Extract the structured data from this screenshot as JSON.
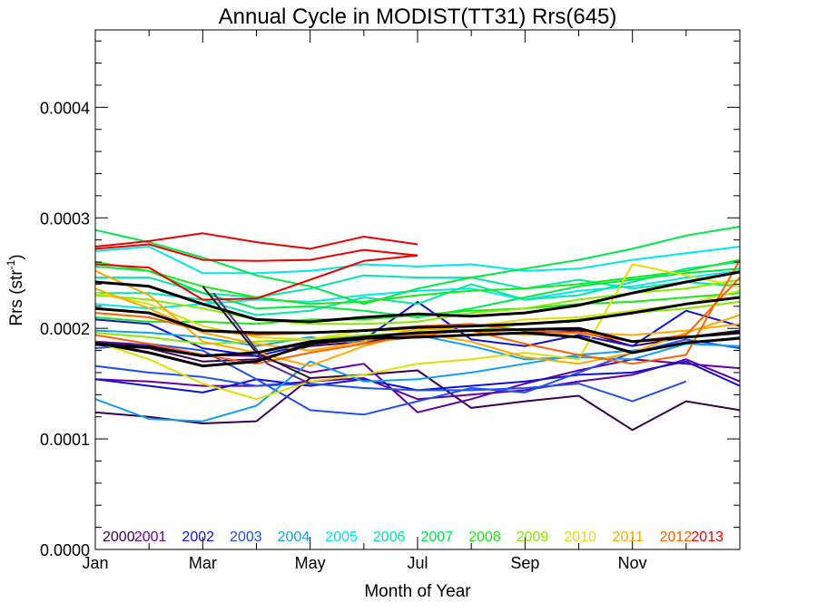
{
  "chart_data": {
    "type": "line",
    "title": "Annual Cycle in MODIST(TT31) Rrs(645)",
    "xlabel": "Month of Year",
    "ylabel": "Rrs (str",
    "ylabel_sup": "-1",
    "ylabel_close": ")",
    "xlim": [
      1,
      13
    ],
    "ylim": [
      0,
      0.00047
    ],
    "x_ticks": [
      {
        "value": 1,
        "label": "Jan"
      },
      {
        "value": 3,
        "label": "Mar"
      },
      {
        "value": 5,
        "label": "May"
      },
      {
        "value": 7,
        "label": "Jul"
      },
      {
        "value": 9,
        "label": "Sep"
      },
      {
        "value": 11,
        "label": "Nov"
      }
    ],
    "y_ticks": [
      {
        "value": 0,
        "label": "0.0000"
      },
      {
        "value": 0.0001,
        "label": "0.0001"
      },
      {
        "value": 0.0002,
        "label": "0.0002"
      },
      {
        "value": 0.0003,
        "label": "0.0003"
      },
      {
        "value": 0.0004,
        "label": "0.0004"
      }
    ],
    "grid": false,
    "legend_position": "bottom",
    "series": [
      {
        "name": "2000",
        "color": "#3a0050",
        "lines": [
          [
            0.000124,
            0.00012,
            0.000114,
            0.000116,
            0.000155,
            0.000158,
            0.000162,
            0.000128,
            0.000134,
            0.000139,
            0.000108,
            0.000134,
            0.000126
          ],
          [
            0.000185,
            0.000182,
            0.00017,
            0.000172,
            0.000184,
            0.000188,
            0.000192,
            0.000194,
            0.000196,
            0.000198,
            0.000184,
            0.000192,
            0.000198
          ]
        ]
      },
      {
        "name": "2001",
        "color": "#6400a6",
        "lines": [
          [
            0.000188,
            0.000185,
            0.000176,
            0.000175,
            0.00016,
            0.000168,
            0.000124,
            0.000136,
            0.00015,
            0.000162,
            0.000172,
            0.000168,
            0.000164
          ],
          [
            0.000154,
            0.000152,
            0.000148,
            0.000148,
            0.000152,
            0.000155,
            0.000136,
            0.00014,
            0.000144,
            0.000152,
            0.000158,
            0.000172,
            0.000152
          ]
        ]
      },
      {
        "name": "2002",
        "color": "#1010d8",
        "lines": [
          [
            0.000208,
            0.000204,
            0.000182,
            0.000175,
            0.000186,
            0.00019,
            0.000224,
            0.00019,
            0.000184,
            0.000194,
            0.000184,
            0.000216,
            0.000202
          ],
          [
            0.000154,
            0.000148,
            0.000142,
            0.000154,
            0.000148,
            0.000154,
            0.000144,
            0.000148,
            0.000152,
            0.000158,
            0.00016,
            0.00017,
            0.000148
          ]
        ]
      },
      {
        "name": "2003",
        "color": "#2050f0",
        "lines": [
          [
            0.000166,
            0.00016,
            0.000156,
            0.000148,
            0.00015,
            0.000146,
            0.000144,
            0.000144,
            0.000146,
            0.00015,
            0.000134,
            0.000152
          ],
          [
            0.000182,
            0.000186,
            0.00018,
            0.000154,
            0.000126,
            0.000122,
            0.000134,
            0.000146,
            0.000142,
            0.00016,
            0.000178,
            0.00019,
            0.000182
          ]
        ]
      },
      {
        "name": "2004",
        "color": "#10a0f0",
        "lines": [
          [
            0.000136,
            0.000118,
            0.000116,
            0.00013,
            0.00017,
            0.000152,
            0.000154,
            0.00016,
            0.000168,
            0.000176,
            0.00018,
            0.000186,
            0.000184
          ],
          [
            0.000198,
            0.000196,
            0.000192,
            0.000184,
            0.000192,
            0.000186,
            0.000194,
            0.000184,
            0.000172,
            0.000174,
            0.000172,
            0.000186,
            0.000192
          ]
        ]
      },
      {
        "name": "2005",
        "color": "#00e8e8",
        "lines": [
          [
            0.00027,
            0.000274,
            0.00025,
            0.00025,
            0.000252,
            0.000258,
            0.000256,
            0.000258,
            0.000252,
            0.000254,
            0.000262,
            0.000268,
            0.000274
          ],
          [
            0.000222,
            0.000218,
            0.000222,
            0.000226,
            0.000224,
            0.00023,
            0.000234,
            0.000236,
            0.000226,
            0.000234,
            0.000238,
            0.000246,
            0.000252
          ]
        ]
      },
      {
        "name": "2006",
        "color": "#00e8a8",
        "lines": [
          [
            0.000246,
            0.000246,
            0.000232,
            0.000228,
            0.000236,
            0.000248,
            0.000246,
            0.000246,
            0.000236,
            0.000244,
            0.000236,
            0.000242,
            0.000238
          ],
          [
            0.000232,
            0.000232,
            0.000226,
            0.000212,
            0.000216,
            0.000228,
            0.000222,
            0.00024,
            0.000226,
            0.00023,
            0.000242,
            0.000254,
            0.00026
          ]
        ]
      },
      {
        "name": "2007",
        "color": "#00e848",
        "lines": [
          [
            0.000289,
            0.000278,
            0.000264,
            0.000248,
            0.000238,
            0.000222,
            0.000236,
            0.000246,
            0.000254,
            0.000262,
            0.000272,
            0.000284,
            0.000292
          ],
          [
            0.000256,
            0.000252,
            0.000232,
            0.000218,
            0.00022,
            0.000216,
            0.00021,
            0.000218,
            0.000228,
            0.000238,
            0.000244,
            0.00025,
            0.000254
          ]
        ]
      },
      {
        "name": "2008",
        "color": "#18e818",
        "lines": [
          [
            0.00026,
            0.000252,
            0.000238,
            0.000228,
            0.000222,
            0.000224,
            0.00023,
            0.000234,
            0.000236,
            0.00024,
            0.000246,
            0.000252,
            0.000262
          ],
          [
            0.00021,
            0.000206,
            0.000206,
            0.000204,
            0.000208,
            0.000208,
            0.000212,
            0.000216,
            0.000218,
            0.000222,
            0.000224,
            0.000228,
            0.000232
          ]
        ]
      },
      {
        "name": "2009",
        "color": "#88e800",
        "lines": [
          [
            0.00023,
            0.000226,
            0.000218,
            0.000208,
            0.000204,
            0.000204,
            0.000206,
            0.000214,
            0.000218,
            0.000226,
            0.000232,
            0.000236,
            0.000244
          ],
          [
            0.000196,
            0.000192,
            0.000186,
            0.000188,
            0.00019,
            0.000194,
            0.000196,
            0.000198,
            0.000204,
            0.000208,
            0.000214,
            0.000218,
            0.000224
          ]
        ]
      },
      {
        "name": "2010",
        "color": "#e0e000",
        "lines": [
          [
            0.000188,
            0.000172,
            0.00015,
            0.000136,
            0.000152,
            0.000158,
            0.000168,
            0.000172,
            0.000178,
            0.000172,
            0.000258,
            0.000248,
            0.000238
          ],
          [
            0.000232,
            0.000222,
            0.000202,
            0.000192,
            0.00019,
            0.000198,
            0.000198,
            0.000202,
            0.000208,
            0.00021,
            0.000216,
            0.000222,
            0.000234
          ]
        ]
      },
      {
        "name": "2011",
        "color": "#ffa800",
        "lines": [
          [
            0.000252,
            0.00023,
            0.000188,
            0.000178,
            0.000166,
            0.000184,
            0.000196,
            0.000188,
            0.000174,
            0.000168,
            0.000178,
            0.000196,
            0.000212
          ],
          [
            0.000236,
            0.000218,
            0.000196,
            0.000186,
            0.00018,
            0.000188,
            0.0002,
            0.000198,
            0.000194,
            0.000196,
            0.000194,
            0.000198,
            0.000204
          ]
        ]
      },
      {
        "name": "2012",
        "color": "#ff6000",
        "lines": [
          [
            0.000194,
            0.000186,
            0.000176,
            0.000168,
            0.000178,
            0.000186,
            0.000194,
            0.000198,
            0.000186,
            0.000176,
            0.000168,
            0.000176,
            0.000262
          ],
          [
            0.000214,
            0.00021,
            0.000198,
            0.000194,
            0.000196,
            0.000198,
            0.000202,
            0.000204,
            0.000198,
            0.000196,
            0.000188,
            0.000194,
            0.000246
          ]
        ]
      },
      {
        "name": "2013",
        "color": "#ee0000",
        "lines": [
          [
            0.000274,
            0.000279,
            0.000286,
            0.000278,
            0.000272,
            0.000283,
            0.000276
          ],
          [
            0.000272,
            0.000276,
            0.000262,
            0.000261,
            0.000262,
            0.000271,
            0.000266
          ],
          [
            0.000258,
            0.000255,
            0.000226,
            0.000227,
            0.000244,
            0.000261,
            0.000266
          ]
        ]
      }
    ],
    "mean_lines": {
      "color": "#000000",
      "lines": [
        [
          0.000242,
          0.000238,
          0.000222,
          0.000208,
          0.000206,
          0.00021,
          0.000213,
          0.000211,
          0.000214,
          0.000221,
          0.000232,
          0.000242,
          0.000251
        ],
        [
          0.000218,
          0.000214,
          0.000198,
          0.000196,
          0.000196,
          0.000198,
          0.000201,
          0.000202,
          0.000204,
          0.000207,
          0.000214,
          0.000222,
          0.000228
        ],
        [
          0.000187,
          0.000178,
          0.000166,
          0.00017,
          0.000186,
          0.000191,
          0.000192,
          0.000194,
          0.000196,
          0.000192,
          0.000178,
          0.000187,
          0.000191
        ],
        [
          0.000186,
          0.000183,
          0.000175,
          0.000178,
          0.000188,
          0.000192,
          0.000196,
          0.000198,
          0.000199,
          0.0002,
          0.000188,
          0.000192,
          0.000196
        ]
      ]
    },
    "extra_segments": [
      {
        "color": "#1a1a1a",
        "points": [
          [
            3.0,
            0.000238
          ],
          [
            4.0,
            0.000178
          ],
          [
            5.0,
            0.000155
          ]
        ]
      },
      {
        "color": "#5a2a8a",
        "points": [
          [
            3.2,
            0.000232
          ],
          [
            4.2,
            0.000168
          ],
          [
            5.0,
            0.00015
          ]
        ]
      }
    ]
  }
}
